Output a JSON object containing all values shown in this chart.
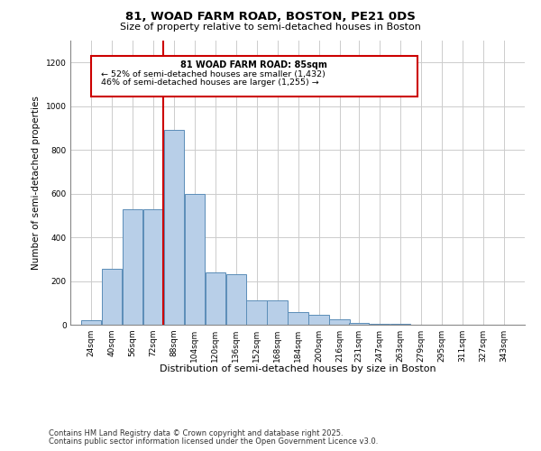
{
  "title1": "81, WOAD FARM ROAD, BOSTON, PE21 0DS",
  "title2": "Size of property relative to semi-detached houses in Boston",
  "xlabel": "Distribution of semi-detached houses by size in Boston",
  "ylabel": "Number of semi-detached properties",
  "footer1": "Contains HM Land Registry data © Crown copyright and database right 2025.",
  "footer2": "Contains public sector information licensed under the Open Government Licence v3.0.",
  "annotation_title": "81 WOAD FARM ROAD: 85sqm",
  "annotation_line2": "← 52% of semi-detached houses are smaller (1,432)",
  "annotation_line3": "46% of semi-detached houses are larger (1,255) →",
  "property_size": 85,
  "bar_color": "#b8cfe8",
  "bar_edge_color": "#5b8db8",
  "vline_color": "#cc0000",
  "annotation_box_color": "#cc0000",
  "background_color": "#ffffff",
  "grid_color": "#cccccc",
  "ylim": [
    0,
    1300
  ],
  "yticks": [
    0,
    200,
    400,
    600,
    800,
    1000,
    1200
  ],
  "bin_labels": [
    "24sqm",
    "40sqm",
    "56sqm",
    "72sqm",
    "88sqm",
    "104sqm",
    "120sqm",
    "136sqm",
    "152sqm",
    "168sqm",
    "184sqm",
    "200sqm",
    "216sqm",
    "231sqm",
    "247sqm",
    "263sqm",
    "279sqm",
    "295sqm",
    "311sqm",
    "327sqm",
    "343sqm"
  ],
  "bin_edges": [
    24,
    40,
    56,
    72,
    88,
    104,
    120,
    136,
    152,
    168,
    184,
    200,
    216,
    231,
    247,
    263,
    279,
    295,
    311,
    327,
    343
  ],
  "bar_heights": [
    20,
    255,
    530,
    530,
    890,
    600,
    240,
    230,
    110,
    110,
    58,
    45,
    25,
    10,
    5,
    3,
    2,
    1,
    1,
    0,
    0
  ]
}
